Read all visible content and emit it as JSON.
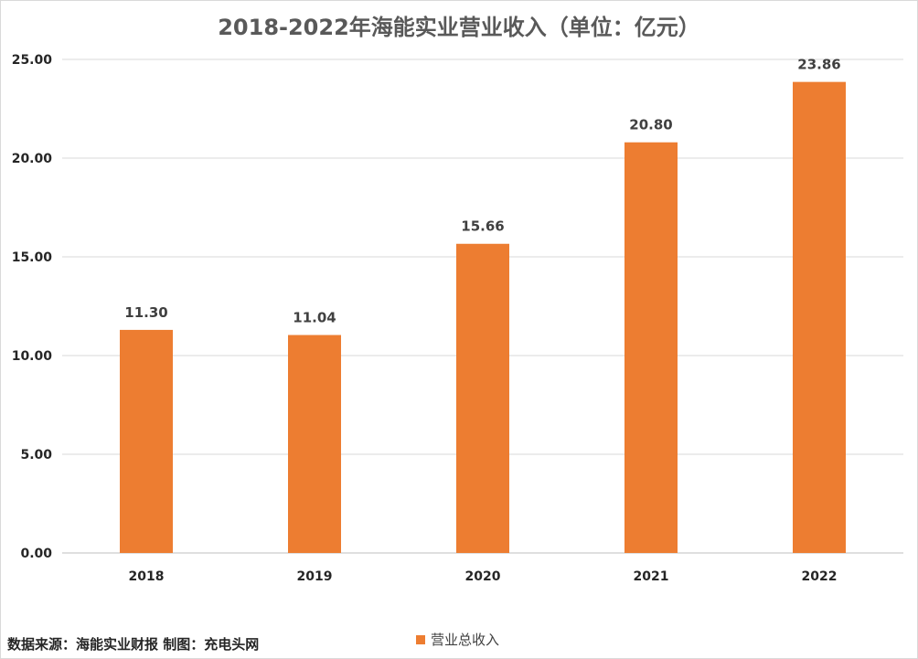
{
  "chart_data": {
    "type": "bar",
    "title": "2018-2022年海能实业营业收入（单位：亿元）",
    "categories": [
      "2018",
      "2019",
      "2020",
      "2021",
      "2022"
    ],
    "series": [
      {
        "name": "营业总收入",
        "values": [
          11.3,
          11.04,
          15.66,
          20.8,
          23.86
        ],
        "color": "#ED7D31"
      }
    ],
    "data_labels": [
      "11.30",
      "11.04",
      "15.66",
      "20.80",
      "23.86"
    ],
    "ylim": [
      0,
      25
    ],
    "yticks": [
      "0.00",
      "5.00",
      "10.00",
      "15.00",
      "20.00",
      "25.00"
    ],
    "grid": true,
    "legend_position": "bottom"
  },
  "footer": {
    "source": "数据来源：海能实业财报  制图：充电头网"
  }
}
